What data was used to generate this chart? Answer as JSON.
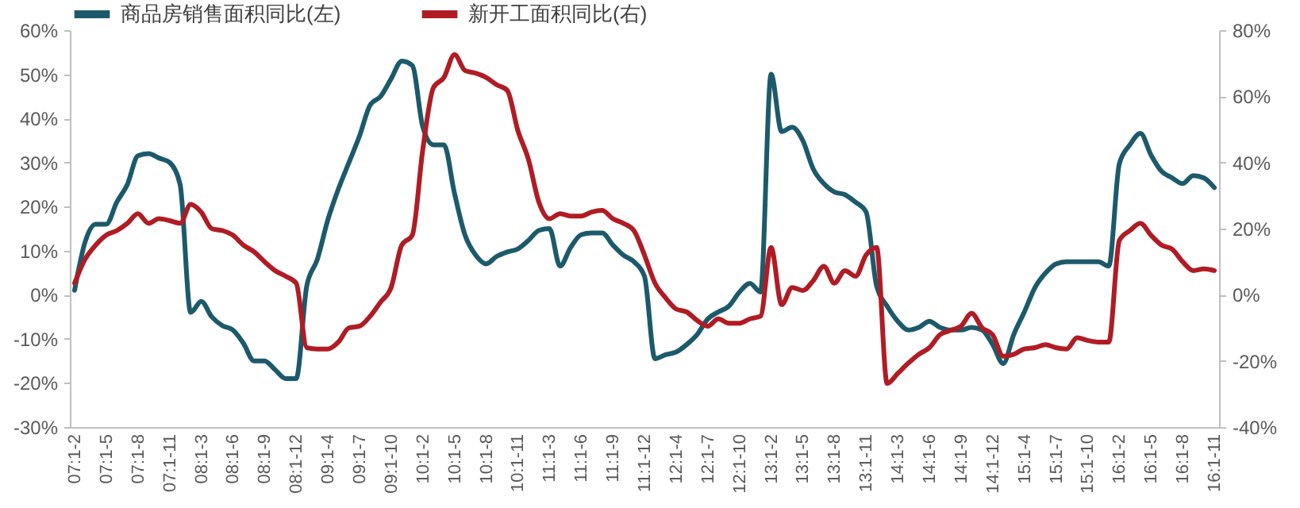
{
  "chart_data": {
    "type": "line",
    "categories": [
      "07:1-2",
      null,
      null,
      "07:1-5",
      null,
      null,
      "07:1-8",
      null,
      null,
      "07:1-11",
      null,
      null,
      "08:1-3",
      null,
      null,
      "08:1-6",
      null,
      null,
      "08:1-9",
      null,
      null,
      "08:1-12",
      null,
      null,
      "09:1-4",
      null,
      null,
      "09:1-7",
      null,
      null,
      "09:1-10",
      null,
      null,
      "10:1-2",
      null,
      null,
      "10:1-5",
      null,
      null,
      "10:1-8",
      null,
      null,
      "10:1-11",
      null,
      null,
      "11:1-3",
      null,
      null,
      "11:1-6",
      null,
      null,
      "11:1-9",
      null,
      null,
      "11:1-12",
      null,
      null,
      "12:1-4",
      null,
      null,
      "12:1-7",
      null,
      null,
      "12:1-10",
      null,
      null,
      "13:1-2",
      null,
      null,
      "13:1-5",
      null,
      null,
      "13:1-8",
      null,
      null,
      "13:1-11",
      null,
      null,
      "14:1-3",
      null,
      null,
      "14:1-6",
      null,
      null,
      "14:1-9",
      null,
      null,
      "14:1-12",
      null,
      null,
      "15:1-4",
      null,
      null,
      "15:1-7",
      null,
      null,
      "15:1-10",
      null,
      null,
      "16:1-2",
      null,
      null,
      "16:1-5",
      null,
      null,
      "16:1-8",
      null,
      null,
      "16:1-11"
    ],
    "series": [
      {
        "name": "商品房销售面积同比(左)",
        "color": "#1c5a6b",
        "values": [
          1,
          12,
          16,
          16,
          21,
          25,
          31.5,
          32,
          31,
          30,
          25,
          -4,
          -1.5,
          -5,
          -7,
          -8,
          -11,
          -15,
          -15,
          -17,
          -19,
          -19,
          2,
          8,
          17,
          24,
          30,
          36,
          43,
          45,
          49,
          53,
          52,
          38,
          34,
          34,
          23,
          13.5,
          9,
          7,
          8.7,
          9.7,
          10.4,
          12.3,
          14.6,
          15,
          6.5,
          10.7,
          13.6,
          14,
          14,
          11.3,
          9,
          7.5,
          4.2,
          -14.5,
          -13.6,
          -13,
          -11.3,
          -9,
          -5.5,
          -3.9,
          -2.6,
          0.6,
          2.6,
          0.6,
          50,
          37,
          38,
          35,
          28.5,
          25.2,
          23.3,
          22.7,
          21,
          18.8,
          2,
          -2.6,
          -6,
          -8,
          -7.4,
          -6,
          -7.4,
          -8,
          -8,
          -7.4,
          -8,
          -11.3,
          -15.6,
          -9,
          -3.9,
          1.6,
          4.9,
          7,
          7.5,
          7.5,
          7.5,
          7.5,
          6.5,
          29.7,
          34,
          36.6,
          31.7,
          28,
          26.5,
          25.2,
          27,
          26.5,
          24.3
        ]
      },
      {
        "name": "新开工面积同比(右)",
        "color": "#b01c24",
        "axis": "y2",
        "values": [
          3.5,
          10.8,
          15,
          18,
          19.4,
          21.6,
          24.5,
          21.6,
          23,
          22.4,
          21.6,
          27.3,
          25,
          20,
          19.4,
          18,
          15,
          13,
          10,
          7.3,
          5.6,
          3.5,
          -16,
          -16.4,
          -16.4,
          -14.3,
          -10,
          -9.5,
          -6.5,
          -2.2,
          2.2,
          15,
          18,
          44,
          62.6,
          65.7,
          72.6,
          67.8,
          67,
          65.7,
          63.5,
          61.8,
          49.7,
          41,
          28,
          23,
          24.5,
          23.8,
          23.8,
          25,
          25.5,
          23,
          21.6,
          19.4,
          12,
          3.5,
          -0.9,
          -4.3,
          -5.2,
          -7.8,
          -9.5,
          -7.3,
          -8.6,
          -8.6,
          -7.3,
          -6.5,
          14.3,
          -3,
          2.2,
          1.3,
          4.3,
          8.6,
          3.5,
          7.3,
          5.6,
          12,
          14.3,
          -26.8,
          -23.8,
          -20.7,
          -18,
          -16,
          -12.1,
          -10.8,
          -9.5,
          -5.6,
          -10,
          -12.1,
          -18.6,
          -18,
          -16.4,
          -16,
          -15.1,
          -16,
          -16.4,
          -13,
          -13.8,
          -14.3,
          -14.3,
          16.4,
          19.4,
          21.6,
          18,
          15,
          13.8,
          10,
          7.3,
          7.8,
          7.3
        ]
      }
    ],
    "ylim": [
      -30,
      60
    ],
    "yticks": [
      {
        "value": -30,
        "label": "-30%"
      },
      {
        "value": -20,
        "label": "-20%"
      },
      {
        "value": -10,
        "label": "-10%"
      },
      {
        "value": 0,
        "label": "0%"
      },
      {
        "value": 10,
        "label": "10%"
      },
      {
        "value": 20,
        "label": "20%"
      },
      {
        "value": 30,
        "label": "30%"
      },
      {
        "value": 40,
        "label": "40%"
      },
      {
        "value": 50,
        "label": "50%"
      },
      {
        "value": 60,
        "label": "60%"
      }
    ],
    "y2lim": [
      -40,
      80
    ],
    "y2ticks": [
      {
        "value": -40,
        "label": "-40%"
      },
      {
        "value": -20,
        "label": "-20%"
      },
      {
        "value": 0,
        "label": "0%"
      },
      {
        "value": 20,
        "label": "20%"
      },
      {
        "value": 40,
        "label": "40%"
      },
      {
        "value": 60,
        "label": "60%"
      },
      {
        "value": 80,
        "label": "80%"
      }
    ],
    "legend": "top"
  }
}
